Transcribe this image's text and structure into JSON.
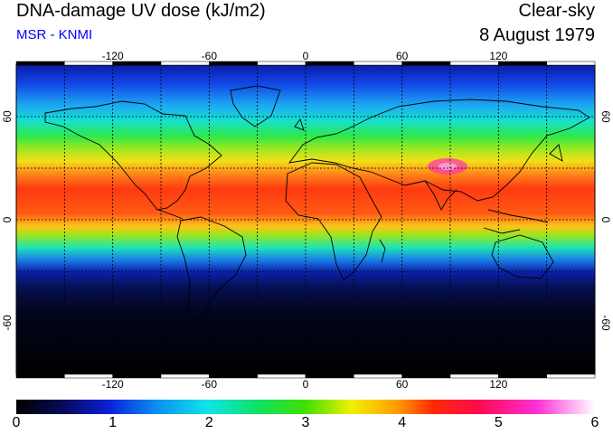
{
  "header": {
    "title": "DNA-damage UV dose (kJ/m2)",
    "subtitle": "MSR - KNMI",
    "condition": "Clear-sky",
    "date": "8 August 1979"
  },
  "colors": {
    "subtitle": "#0000ff"
  },
  "map": {
    "lon_ticks": [
      "-120",
      "-60",
      "0",
      "60",
      "120"
    ],
    "lat_ticks": [
      "60",
      "0",
      "-60"
    ],
    "lon_tick_values": [
      -120,
      -60,
      0,
      60,
      120
    ],
    "lat_tick_values": [
      60,
      0,
      -60
    ],
    "lon_range": [
      -180,
      180
    ],
    "lat_range": [
      -90,
      90
    ],
    "gridlines_lon": [
      -150,
      -120,
      -90,
      -60,
      -30,
      0,
      30,
      60,
      90,
      120,
      150
    ],
    "gridlines_lat": [
      -60,
      -30,
      0,
      30,
      60
    ]
  },
  "colorbar": {
    "ticks": [
      "0",
      "1",
      "2",
      "3",
      "4",
      "5",
      "6"
    ],
    "min": 0,
    "max": 6
  }
}
